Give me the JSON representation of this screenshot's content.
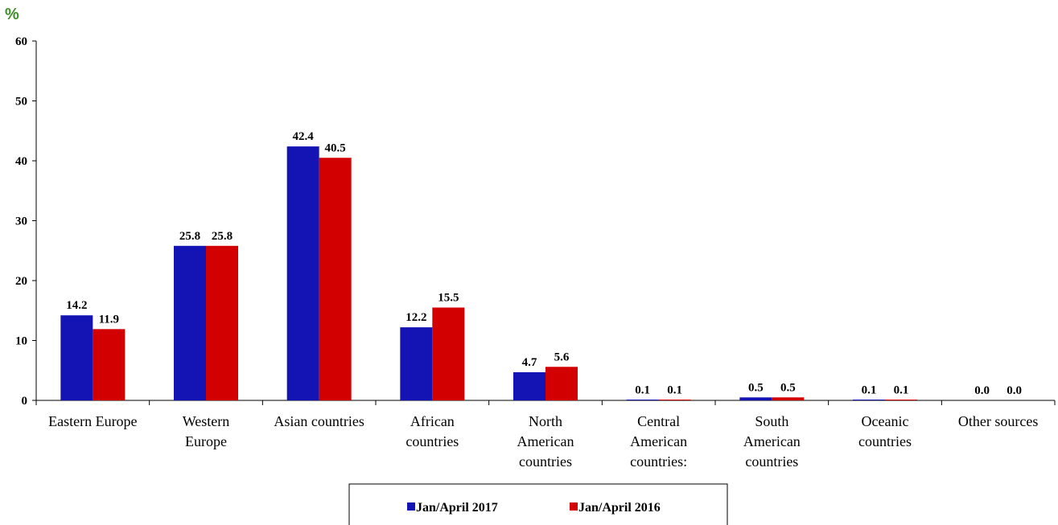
{
  "chart_data": {
    "type": "bar",
    "unit_label": "%",
    "categories": [
      [
        "Eastern Europe"
      ],
      [
        "Western",
        "Europe"
      ],
      [
        "Asian countries"
      ],
      [
        "African",
        "countries"
      ],
      [
        "North",
        "American",
        "countries"
      ],
      [
        "Central",
        "American",
        "countries:"
      ],
      [
        "South",
        "American",
        "countries"
      ],
      [
        "Oceanic",
        "countries"
      ],
      [
        "Other sources"
      ]
    ],
    "series": [
      {
        "name": "Jan/April 2017",
        "color": "#1414b4",
        "values": [
          14.2,
          25.8,
          42.4,
          12.2,
          4.7,
          0.1,
          0.5,
          0.1,
          0.0
        ]
      },
      {
        "name": "Jan/April 2016",
        "color": "#d20000",
        "values": [
          11.9,
          25.8,
          40.5,
          15.5,
          5.6,
          0.1,
          0.5,
          0.1,
          0.0
        ]
      }
    ],
    "yticks": [
      0,
      10,
      20,
      30,
      40,
      50,
      60
    ],
    "ylim": [
      0,
      60
    ],
    "legend_position": "bottom",
    "grid": false
  }
}
